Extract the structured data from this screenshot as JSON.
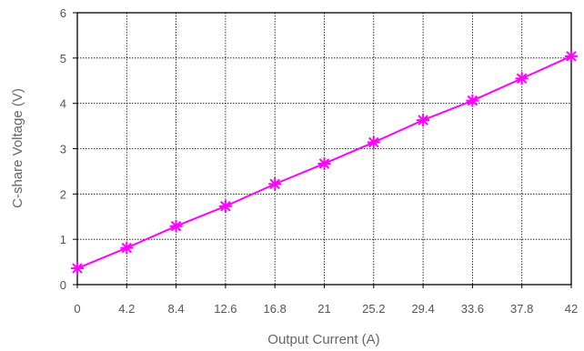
{
  "chart_data": {
    "type": "line",
    "title": "",
    "xlabel": "Output Current (A)",
    "ylabel": "C-share Voltage (V)",
    "x_ticks": [
      "0",
      "4.2",
      "8.4",
      "12.6",
      "16.8",
      "21",
      "25.2",
      "29.4",
      "33.6",
      "37.8",
      "42"
    ],
    "y_ticks": [
      "0",
      "1",
      "2",
      "3",
      "4",
      "5",
      "6"
    ],
    "xlim": [
      0,
      42
    ],
    "ylim": [
      0,
      6
    ],
    "grid": "dotted",
    "series": [
      {
        "color": "#ff00ff",
        "marker": "asterisk",
        "x": [
          0,
          4.2,
          8.4,
          12.6,
          16.8,
          21,
          25.2,
          29.4,
          33.6,
          37.8,
          42
        ],
        "y": [
          0.36,
          0.81,
          1.29,
          1.73,
          2.22,
          2.67,
          3.14,
          3.63,
          4.06,
          4.55,
          5.04
        ]
      }
    ],
    "axis_color": "#000000",
    "grid_color": "#000000"
  }
}
